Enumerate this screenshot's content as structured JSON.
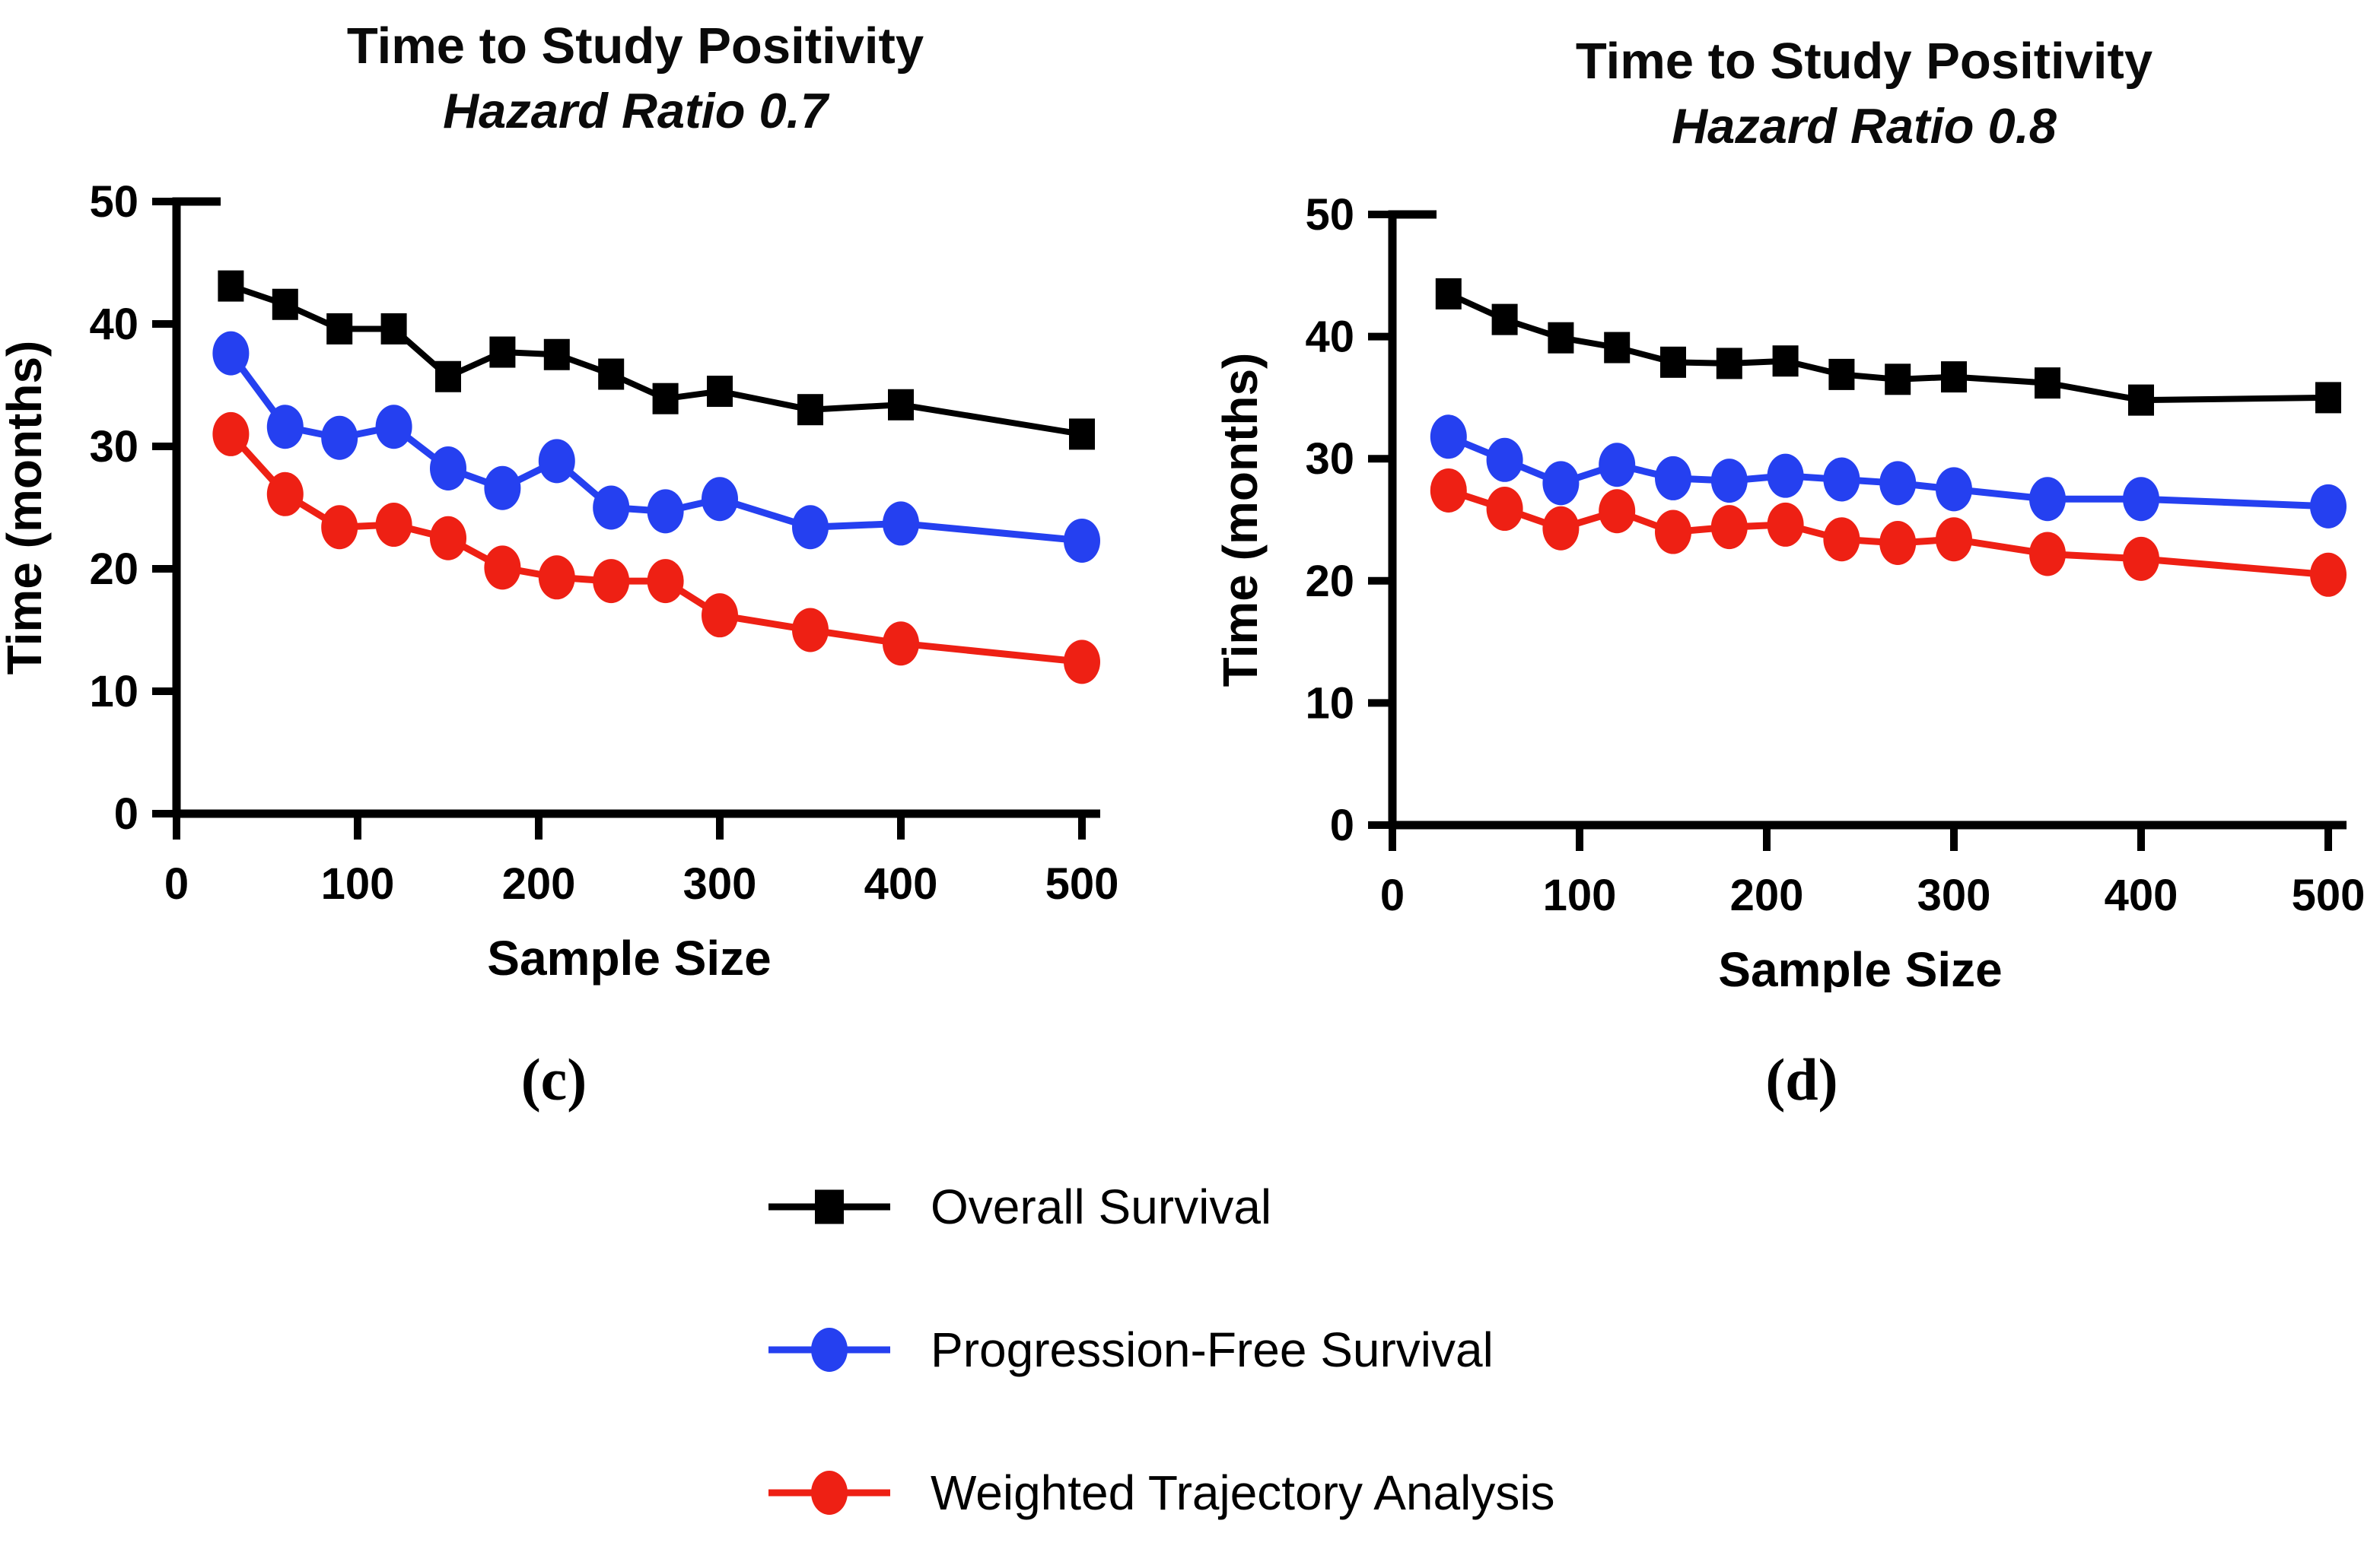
{
  "figure": {
    "background": "#ffffff",
    "axis_color": "#000000",
    "tick_label_fontsize": 58,
    "panel_letters": [
      "(c)",
      "(d)"
    ]
  },
  "chart_data": [
    {
      "type": "line",
      "panel_label": "(c)",
      "title": "Time to Study Positivity",
      "subtitle": "Hazard Ratio 0.7",
      "xlabel": "Sample Size",
      "ylabel": "Time (months)",
      "xlim": [
        0,
        500
      ],
      "ylim": [
        0,
        50
      ],
      "xticks": [
        0,
        100,
        200,
        300,
        400,
        500
      ],
      "yticks": [
        0,
        10,
        20,
        30,
        40,
        50
      ],
      "grid": false,
      "x": [
        30,
        60,
        90,
        120,
        150,
        180,
        210,
        240,
        270,
        300,
        350,
        400,
        500
      ],
      "series": [
        {
          "name": "Overall Survival",
          "color": "#000000",
          "marker": "square",
          "values": [
            43.1,
            41.6,
            39.6,
            39.6,
            35.7,
            37.7,
            37.5,
            35.9,
            33.9,
            34.5,
            33.0,
            33.4,
            31.0
          ]
        },
        {
          "name": "Progression-Free Survival",
          "color": "#2540f0",
          "marker": "circle",
          "values": [
            37.6,
            31.6,
            30.7,
            31.6,
            28.2,
            26.6,
            28.8,
            25.0,
            24.7,
            25.7,
            23.4,
            23.7,
            22.3
          ]
        },
        {
          "name": "Weighted Trajectory Analysis",
          "color": "#ee2014",
          "marker": "circle",
          "values": [
            31.0,
            26.1,
            23.4,
            23.6,
            22.5,
            20.1,
            19.3,
            19.0,
            19.0,
            16.2,
            15.0,
            13.9,
            12.4
          ]
        }
      ]
    },
    {
      "type": "line",
      "panel_label": "(d)",
      "title": "Time to Study Positivity",
      "subtitle": "Hazard Ratio 0.8",
      "xlabel": "Sample Size",
      "ylabel": "Time (months)",
      "xlim": [
        0,
        500
      ],
      "ylim": [
        0,
        50
      ],
      "xticks": [
        0,
        100,
        200,
        300,
        400,
        500
      ],
      "yticks": [
        0,
        10,
        20,
        30,
        40,
        50
      ],
      "grid": false,
      "x": [
        30,
        60,
        90,
        120,
        150,
        180,
        210,
        240,
        270,
        300,
        350,
        400,
        500
      ],
      "series": [
        {
          "name": "Overall Survival",
          "color": "#000000",
          "marker": "square",
          "values": [
            43.5,
            41.4,
            39.9,
            39.1,
            37.9,
            37.8,
            38.0,
            36.9,
            36.5,
            36.7,
            36.2,
            34.8,
            35.0
          ]
        },
        {
          "name": "Progression-Free Survival",
          "color": "#2540f0",
          "marker": "circle",
          "values": [
            31.8,
            29.9,
            28.0,
            29.5,
            28.4,
            28.2,
            28.6,
            28.3,
            28.0,
            27.5,
            26.7,
            26.7,
            26.1
          ]
        },
        {
          "name": "Weighted Trajectory Analysis",
          "color": "#ee2014",
          "marker": "circle",
          "values": [
            27.4,
            25.9,
            24.3,
            25.7,
            24.0,
            24.4,
            24.6,
            23.4,
            23.1,
            23.4,
            22.2,
            21.8,
            20.5
          ]
        }
      ]
    }
  ],
  "legend": {
    "items": [
      {
        "label": "Overall Survival",
        "color": "#000000",
        "marker": "square"
      },
      {
        "label": "Progression-Free Survival",
        "color": "#2540f0",
        "marker": "circle"
      },
      {
        "label": "Weighted Trajectory Analysis",
        "color": "#ee2014",
        "marker": "circle"
      }
    ]
  }
}
